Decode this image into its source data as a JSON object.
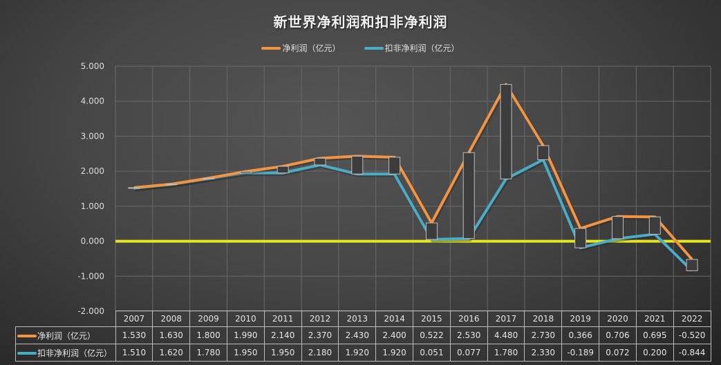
{
  "title": "新世界净利润和扣非净利润",
  "legend": [
    {
      "label": "净利润（亿元）",
      "color": "#f39443"
    },
    {
      "label": "扣非净利润（亿元）",
      "color": "#4bacc6"
    }
  ],
  "colors": {
    "net": "#f39443",
    "deducted": "#4bacc6",
    "zero_line": "#e6e621",
    "box_fill": "#3c3c3c",
    "box_stroke": "#bfbfbf",
    "grid": "#6a6a6a"
  },
  "y_axis": {
    "ticks": [
      "5.000",
      "4.000",
      "3.000",
      "2.000",
      "1.000",
      "0.000",
      "-1.000",
      "-2.000"
    ]
  },
  "table": {
    "rows": [
      {
        "label": "净利润（亿元）",
        "color": "#f39443",
        "values": [
          "1.530",
          "1.630",
          "1.800",
          "1.990",
          "2.140",
          "2.370",
          "2.430",
          "2.400",
          "0.522",
          "2.530",
          "4.480",
          "2.730",
          "0.366",
          "0.706",
          "0.695",
          "-0.520"
        ]
      },
      {
        "label": "扣非净利润（亿元）",
        "color": "#4bacc6",
        "values": [
          "1.510",
          "1.620",
          "1.780",
          "1.950",
          "1.950",
          "2.180",
          "1.920",
          "1.920",
          "0.051",
          "0.077",
          "1.780",
          "2.330",
          "-0.189",
          "0.072",
          "0.200",
          "-0.844"
        ]
      }
    ]
  },
  "chart_data": {
    "type": "line",
    "title": "新世界净利润和扣非净利润",
    "categories": [
      "2007",
      "2008",
      "2009",
      "2010",
      "2011",
      "2012",
      "2013",
      "2014",
      "2015",
      "2016",
      "2017",
      "2018",
      "2019",
      "2020",
      "2021",
      "2022"
    ],
    "series": [
      {
        "name": "净利润（亿元）",
        "color": "#f39443",
        "values": [
          1.53,
          1.63,
          1.8,
          1.99,
          2.14,
          2.37,
          2.43,
          2.4,
          0.522,
          2.53,
          4.48,
          2.73,
          0.366,
          0.706,
          0.695,
          -0.52
        ]
      },
      {
        "name": "扣非净利润（亿元）",
        "color": "#4bacc6",
        "values": [
          1.51,
          1.62,
          1.78,
          1.95,
          1.95,
          2.18,
          1.92,
          1.92,
          0.051,
          0.077,
          1.78,
          2.33,
          -0.189,
          0.072,
          0.2,
          -0.844
        ]
      }
    ],
    "xlabel": "",
    "ylabel": "",
    "ylim": [
      -2,
      5
    ],
    "yticks": [
      5,
      4,
      3,
      2,
      1,
      0,
      -1,
      -2
    ],
    "grid": true,
    "legend_position": "top",
    "annotations": [
      "up-down bars between the two series",
      "highlighted zero line (yellow)"
    ],
    "data_table": true
  }
}
